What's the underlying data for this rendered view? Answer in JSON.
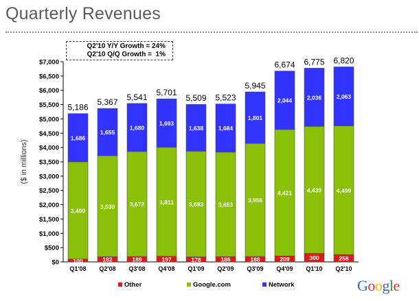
{
  "slide": {
    "title": "Quarterly Revenues",
    "growth_yoy": "Q2'10 Y/Y Growth = 24%",
    "growth_qoq": "Q2'10 Q/Q Growth =  1%"
  },
  "logo": {
    "text": "Google",
    "colors": [
      "#3366cc",
      "#dd3333",
      "#f2b705",
      "#3366cc",
      "#2ca02c",
      "#dd3333"
    ]
  },
  "chart_data": {
    "type": "bar",
    "stacked": true,
    "categories": [
      "Q1'08",
      "Q2'08",
      "Q3'08",
      "Q4'08",
      "Q1'09",
      "Q2'09",
      "Q3'09",
      "Q4'09",
      "Q1'10",
      "Q2'10"
    ],
    "series": [
      {
        "name": "Other",
        "color": "#dd1a1a",
        "values": [
          100,
          182,
          189,
          197,
          178,
          186,
          188,
          209,
          300,
          258
        ]
      },
      {
        "name": "Google.com",
        "color": "#8ac007",
        "values": [
          3400,
          3530,
          3672,
          3811,
          3693,
          3653,
          3956,
          4421,
          4439,
          4499
        ]
      },
      {
        "name": "Network",
        "color": "#3333ff",
        "values": [
          1686,
          1655,
          1680,
          1693,
          1638,
          1684,
          1801,
          2044,
          2036,
          2063
        ]
      }
    ],
    "segment_labels": {
      "Other": [
        "100",
        "182",
        "189",
        "197",
        "178",
        "186",
        "188",
        "209",
        "300",
        "258"
      ],
      "Google.com": [
        "3,400",
        "3,530",
        "3,672",
        "3,811",
        "3,693",
        "3,653",
        "3,956",
        "4,421",
        "4,439",
        "4,499"
      ],
      "Network": [
        "1,686",
        "1,655",
        "1,680",
        "1,693",
        "1,638",
        "1,684",
        "1,801",
        "2,044",
        "2,036",
        "2,063"
      ]
    },
    "totals": [
      "5,186",
      "5,367",
      "5,541",
      "5,701",
      "5,509",
      "5,523",
      "5,945",
      "6,674",
      "6,775",
      "6,820"
    ],
    "ylabel": "($ in millions)",
    "ylim": [
      0,
      7000
    ],
    "ytick_values": [
      0,
      500,
      1000,
      1500,
      2000,
      2500,
      3000,
      3500,
      4000,
      4500,
      5000,
      5500,
      6000,
      6500,
      7000
    ],
    "ytick_labels": [
      "$0",
      "$500",
      "$1,000",
      "$1,500",
      "$2,000",
      "$2,500",
      "$3,000",
      "$3,500",
      "$4,000",
      "$4,500",
      "$5,000",
      "$5,500",
      "$6,000",
      "$6,500",
      "$7,000"
    ],
    "grid": false,
    "legend_position": "bottom"
  }
}
